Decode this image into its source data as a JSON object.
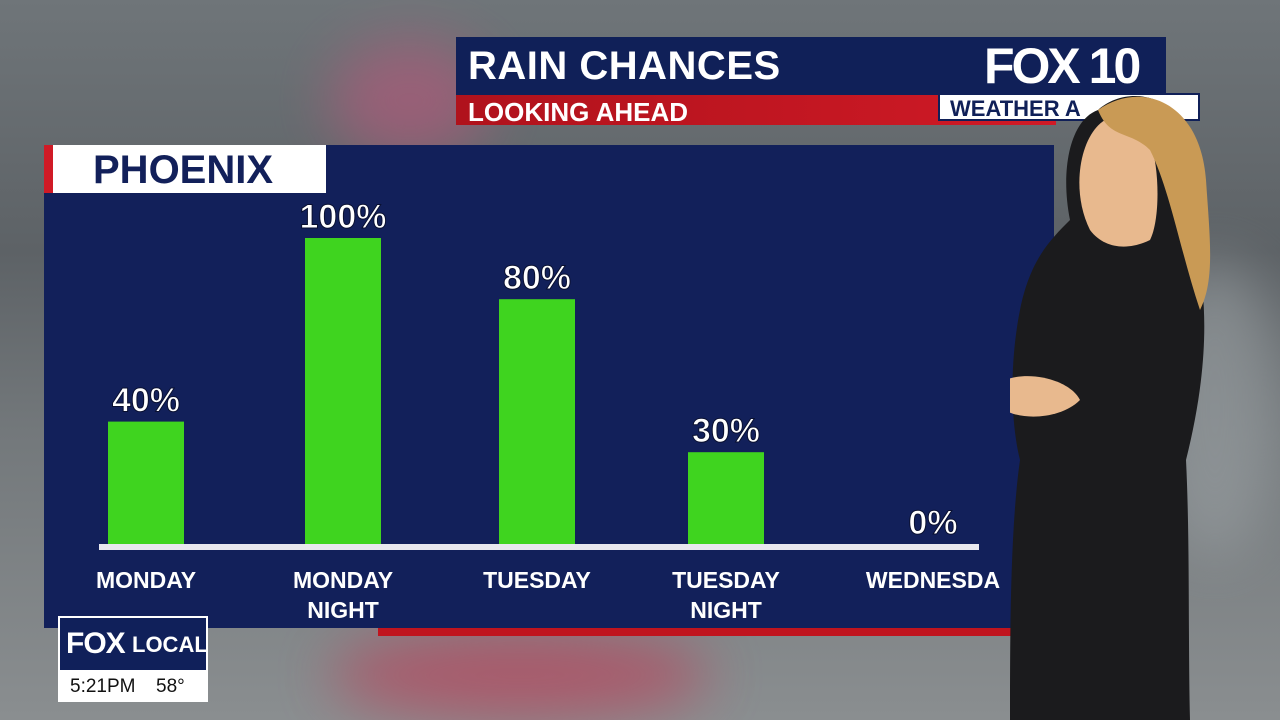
{
  "header": {
    "title": "RAIN CHANCES",
    "subtitle": "LOOKING AHEAD",
    "brand_logo": "FOX 10",
    "brand_tag": "WEATHER A"
  },
  "location": "PHOENIX",
  "chart_data": {
    "type": "bar",
    "categories": [
      "MONDAY",
      "MONDAY NIGHT",
      "TUESDAY",
      "TUESDAY NIGHT",
      "WEDNESDAY"
    ],
    "category_lines": [
      [
        "MONDAY"
      ],
      [
        "MONDAY",
        "NIGHT"
      ],
      [
        "TUESDAY"
      ],
      [
        "TUESDAY",
        "NIGHT"
      ],
      [
        "WEDNESDA"
      ]
    ],
    "values": [
      40,
      100,
      80,
      30,
      0
    ],
    "value_labels": [
      "40%",
      "100%",
      "80%",
      "30%",
      "0%"
    ],
    "unit": "%",
    "ylim": [
      0,
      100
    ],
    "grid": false,
    "bar_color": "#3fd41f"
  },
  "footer": {
    "logo": "FOX",
    "logo_sub": "LOCAL",
    "time": "5:21PM",
    "temperature": "58°"
  },
  "colors": {
    "navy": "#12205a",
    "red": "#d01a26",
    "green": "#3fd41f",
    "white": "#ffffff"
  }
}
